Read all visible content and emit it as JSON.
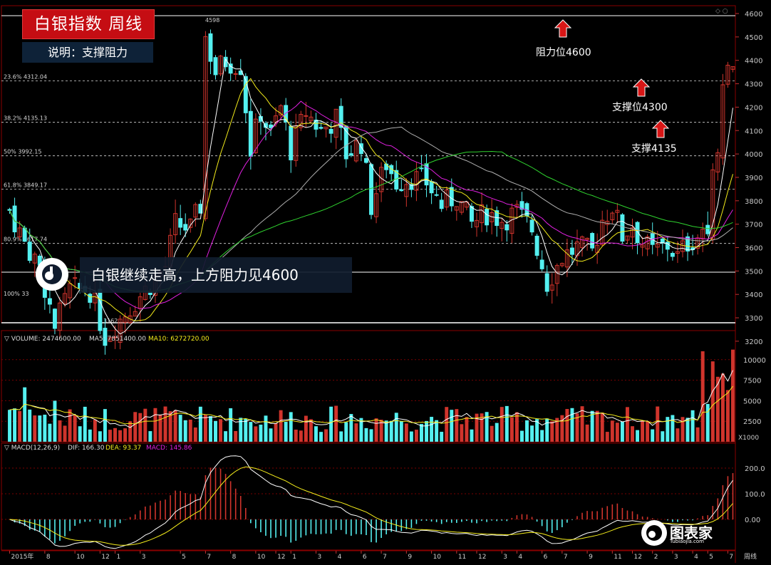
{
  "header": {
    "title": "白银指数  周线",
    "subtitle": "说明：支撑阻力"
  },
  "annotations": {
    "resistance": "阻力位4600",
    "support_4300": "支撑位4300",
    "support_4135": "支撑4135",
    "banner": "白银继续走高，上方阻力见4600"
  },
  "brand": {
    "name": "图表家",
    "site": "Tubiaojia.com"
  },
  "price_panel": {
    "y_ticks": [
      "4600",
      "4500",
      "4400",
      "4300",
      "4200",
      "4100",
      "4000",
      "3900",
      "3800",
      "3700",
      "3600",
      "3500",
      "3400",
      "3300",
      "3200"
    ],
    "high_label": "4598",
    "low_label": "3162",
    "fib_levels": [
      {
        "label": "23.6% 4312.04",
        "value": 4312.04
      },
      {
        "label": "38.2% 4135.13",
        "value": 4135.13
      },
      {
        "label": "50% 3992.15",
        "value": 3992.15
      },
      {
        "label": "61.8% 3849.17",
        "value": 3849.17
      },
      {
        "label": "80.9% 3617.74",
        "value": 3617.74
      },
      {
        "label": "100% 33",
        "value": 3386
      }
    ],
    "legend_icons": "◇ ○"
  },
  "volume_panel": {
    "label": "VOLUME: 2474600.00",
    "ma5_label": "MA5: 7851400.00",
    "ma10_label": "MA10: 6272720.00",
    "y_ticks": [
      "10000",
      "7500",
      "5000",
      "2500"
    ],
    "unit": "X1000"
  },
  "macd_panel": {
    "label": "MACD(12,26,9)",
    "dif_label": "DIF: 166.30",
    "dea_label": "DEA: 93.37",
    "macd_label": "MACD: 145.86",
    "y_ticks": [
      "200.0",
      "100.0",
      "0.00"
    ]
  },
  "x_axis": {
    "labels": [
      {
        "t": "2015年",
        "i": 0
      },
      {
        "t": "8",
        "i": 7
      },
      {
        "t": "10",
        "i": 13
      },
      {
        "t": "12",
        "i": 18
      },
      {
        "t": "1",
        "i": 21
      },
      {
        "t": "3",
        "i": 26
      },
      {
        "t": "5",
        "i": 34
      },
      {
        "t": "7",
        "i": 39
      },
      {
        "t": "8",
        "i": 44
      },
      {
        "t": "10",
        "i": 49
      },
      {
        "t": "12",
        "i": 53
      },
      {
        "t": "1",
        "i": 56
      },
      {
        "t": "3",
        "i": 61
      },
      {
        "t": "4",
        "i": 65
      },
      {
        "t": "6",
        "i": 70
      },
      {
        "t": "7",
        "i": 74
      },
      {
        "t": "9",
        "i": 79
      },
      {
        "t": "10",
        "i": 84
      },
      {
        "t": "11",
        "i": 89
      },
      {
        "t": "12",
        "i": 93
      },
      {
        "t": "3",
        "i": 98
      },
      {
        "t": "4",
        "i": 101
      },
      {
        "t": "6",
        "i": 106
      },
      {
        "t": "7",
        "i": 110
      },
      {
        "t": "9",
        "i": 115
      },
      {
        "t": "11",
        "i": 120
      },
      {
        "t": "12",
        "i": 124
      },
      {
        "t": "2",
        "i": 128
      },
      {
        "t": "3",
        "i": 132
      },
      {
        "t": "4",
        "i": 136
      },
      {
        "t": "5",
        "i": 139
      },
      {
        "t": "7",
        "i": 143
      }
    ],
    "period": "周线"
  },
  "colors": {
    "up": "#d0342c",
    "down": "#54f0f0",
    "ma_white": "#ffffff",
    "ma_yellow": "#f4ec1b",
    "ma_magenta": "#e020e0",
    "ma_green": "#2fd32f",
    "ma_gray": "#b0b0b0",
    "grid": "#7a0000",
    "title_bg": "#c50d13",
    "arrow": "#d81616"
  },
  "chart_data": {
    "type": "candlestick",
    "title": "白银指数 周线",
    "close_anchors": [
      [
        0,
        3760
      ],
      [
        3,
        3620
      ],
      [
        6,
        3520
      ],
      [
        9,
        3260
      ],
      [
        12,
        3420
      ],
      [
        16,
        3420
      ],
      [
        19,
        3220
      ],
      [
        23,
        3320
      ],
      [
        27,
        3420
      ],
      [
        31,
        3520
      ],
      [
        33,
        3700
      ],
      [
        36,
        3680
      ],
      [
        38,
        3780
      ],
      [
        39,
        4500
      ],
      [
        41,
        4350
      ],
      [
        43,
        4400
      ],
      [
        46,
        4380
      ],
      [
        48,
        4020
      ],
      [
        50,
        4180
      ],
      [
        52,
        4080
      ],
      [
        54,
        4200
      ],
      [
        56,
        4020
      ],
      [
        59,
        4180
      ],
      [
        62,
        4100
      ],
      [
        65,
        4150
      ],
      [
        67,
        4000
      ],
      [
        70,
        4050
      ],
      [
        72,
        3780
      ],
      [
        75,
        3960
      ],
      [
        77,
        3880
      ],
      [
        80,
        3900
      ],
      [
        83,
        3880
      ],
      [
        86,
        3780
      ],
      [
        89,
        3820
      ],
      [
        92,
        3700
      ],
      [
        95,
        3750
      ],
      [
        98,
        3720
      ],
      [
        101,
        3750
      ],
      [
        104,
        3680
      ],
      [
        107,
        3450
      ],
      [
        110,
        3560
      ],
      [
        113,
        3600
      ],
      [
        116,
        3580
      ],
      [
        118,
        3720
      ],
      [
        120,
        3780
      ],
      [
        122,
        3650
      ],
      [
        124,
        3700
      ],
      [
        126,
        3620
      ],
      [
        128,
        3580
      ],
      [
        131,
        3610
      ],
      [
        133,
        3560
      ],
      [
        135,
        3620
      ],
      [
        137,
        3650
      ],
      [
        139,
        3710
      ],
      [
        140,
        3900
      ],
      [
        141,
        4050
      ],
      [
        142,
        4320
      ],
      [
        143,
        4360
      ]
    ],
    "y_range": [
      3130,
      4650
    ],
    "volume_range_thousands": [
      0,
      12500
    ],
    "macd_range": [
      -130,
      300
    ],
    "fib_levels": [
      4312.04,
      4135.13,
      3992.15,
      3849.17,
      3617.74
    ],
    "resistance": 4600,
    "supports": [
      4300,
      4135
    ]
  }
}
